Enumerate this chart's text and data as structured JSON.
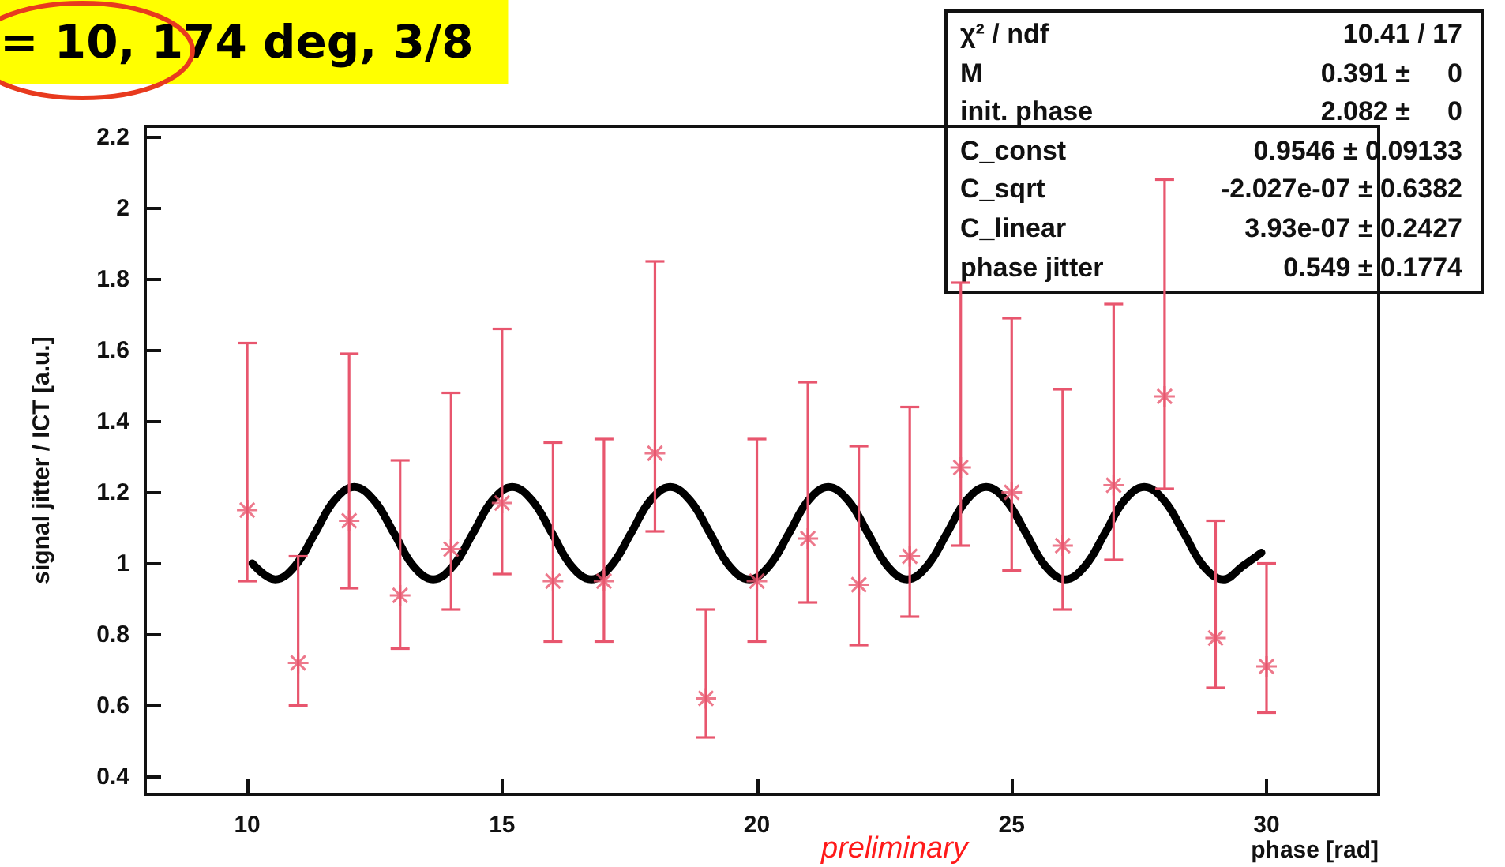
{
  "chart_data": {
    "type": "scatter",
    "title": "= 10, 174 deg, 3/8",
    "xlabel": "phase [rad]",
    "ylabel": "signal jitter / ICT [a.u.]",
    "xlim": [
      8,
      32.2
    ],
    "xticks": [
      10,
      15,
      20,
      25,
      30
    ],
    "ylim": [
      0.35,
      2.23
    ],
    "yticks": [
      0.4,
      0.6,
      0.8,
      1,
      1.2,
      1.4,
      1.6,
      1.8,
      2,
      2.2
    ],
    "grid": false,
    "annotations": [
      "preliminary",
      "χ² / ndf",
      "10.41 / 17",
      "M",
      "0.391 ±     0",
      "init. phase",
      "2.082 ±     0",
      "C_const",
      "0.9546 ± 0.09133",
      "C_sqrt",
      "-2.027e-07 ± 0.6382",
      "C_linear",
      "3.93e-07 ± 0.2427",
      "phase jitter",
      "0.549 ± 0.1774"
    ],
    "series": [
      {
        "color": "#e8566e",
        "marker": "cross",
        "x": [
          10,
          11,
          12,
          13,
          14,
          15,
          16,
          17,
          18,
          19,
          20,
          21,
          22,
          23,
          24,
          25,
          26,
          27,
          28,
          29,
          30
        ],
        "values": [
          1.15,
          0.72,
          1.12,
          0.91,
          1.04,
          1.17,
          0.95,
          0.95,
          1.31,
          0.62,
          0.95,
          1.07,
          0.94,
          1.02,
          1.27,
          1.2,
          1.05,
          1.22,
          1.47,
          0.79,
          0.71
        ],
        "errors": [
          [
            0.95,
            1.62
          ],
          [
            0.6,
            1.02
          ],
          [
            0.93,
            1.59
          ],
          [
            0.76,
            1.29
          ],
          [
            0.87,
            1.48
          ],
          [
            0.97,
            1.66
          ],
          [
            0.78,
            1.34
          ],
          [
            0.78,
            1.35
          ],
          [
            1.09,
            1.85
          ],
          [
            0.51,
            0.87
          ],
          [
            0.78,
            1.35
          ],
          [
            0.89,
            1.51
          ],
          [
            0.77,
            1.33
          ],
          [
            0.85,
            1.44
          ],
          [
            1.05,
            1.79
          ],
          [
            0.98,
            1.69
          ],
          [
            0.87,
            1.49
          ],
          [
            1.01,
            1.73
          ],
          [
            1.21,
            2.08
          ],
          [
            0.65,
            1.12
          ],
          [
            0.58,
            1.0
          ]
        ]
      },
      {
        "type": "line",
        "color": "#000000",
        "marker": "none",
        "line_style": "solid",
        "x": [
          10.1,
          10.55,
          10.94,
          11.33,
          11.71,
          12.1,
          12.49,
          12.88,
          13.26,
          13.65,
          14.04,
          14.43,
          14.81,
          15.2,
          15.59,
          15.98,
          16.36,
          16.75,
          17.14,
          17.53,
          17.91,
          18.3,
          18.69,
          19.08,
          19.46,
          19.85,
          20.24,
          20.63,
          21.01,
          21.4,
          21.79,
          22.18,
          22.56,
          22.95,
          23.34,
          23.73,
          24.11,
          24.5,
          24.89,
          25.28,
          25.66,
          26.05,
          26.44,
          26.83,
          27.21,
          27.6,
          27.99,
          28.38,
          28.76,
          29.15,
          29.54,
          29.9
        ],
        "values": [
          1.0,
          0.955,
          0.993,
          1.085,
          1.177,
          1.215,
          1.177,
          1.085,
          0.993,
          0.955,
          0.993,
          1.085,
          1.177,
          1.215,
          1.177,
          1.085,
          0.993,
          0.955,
          0.993,
          1.085,
          1.177,
          1.215,
          1.177,
          1.085,
          0.993,
          0.955,
          0.993,
          1.085,
          1.177,
          1.215,
          1.177,
          1.085,
          0.993,
          0.955,
          0.993,
          1.085,
          1.177,
          1.215,
          1.177,
          1.085,
          0.993,
          0.955,
          0.993,
          1.085,
          1.177,
          1.215,
          1.177,
          1.085,
          0.993,
          0.955,
          0.993,
          1.03
        ]
      }
    ]
  }
}
